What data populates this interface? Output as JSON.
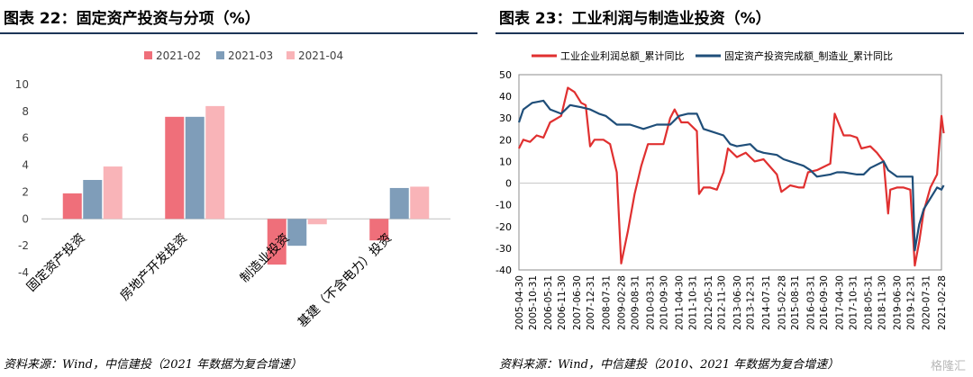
{
  "left": {
    "title": "图表 22：固定资产投资与分项（%）",
    "source": "资料来源：Wind，中信建投（2021 年数据为复合增速）",
    "legend": [
      "2021-02",
      "2021-03",
      "2021-04"
    ]
  },
  "right": {
    "title": "图表 23：工业利润与制造业投资（%）",
    "source": "资料来源：Wind，中信建投（2010、2021 年数据为复合增速）",
    "legend": [
      "工业企业利润总额_累计同比",
      "固定资产投资完成额_制造业_累计同比"
    ]
  },
  "watermark": "格隆汇",
  "chart_data": [
    {
      "type": "bar",
      "categories": [
        "固定资产投资",
        "房地产开发投资",
        "制造业投资",
        "基建（不含电力）投资"
      ],
      "series": [
        {
          "name": "2021-02",
          "values": [
            1.9,
            7.6,
            -3.4,
            -1.6
          ],
          "color": "#ef6f7a"
        },
        {
          "name": "2021-03",
          "values": [
            2.9,
            7.6,
            -2.0,
            2.3
          ],
          "color": "#7f9db9"
        },
        {
          "name": "2021-04",
          "values": [
            3.9,
            8.4,
            -0.4,
            2.4
          ],
          "color": "#f9b4b8"
        }
      ],
      "ylim": [
        -4,
        10
      ],
      "yticks": [
        -4,
        -2,
        0,
        2,
        4,
        6,
        8,
        10
      ],
      "legend_position": "top"
    },
    {
      "type": "line",
      "x_start": "2005-04",
      "x_end": "2021-02",
      "xticks": [
        "2005-04-30",
        "2005-10-31",
        "2006-05-31",
        "2006-11-30",
        "2007-06-30",
        "2007-12-31",
        "2008-07-31",
        "2009-02-28",
        "2009-08-31",
        "2010-03-31",
        "2010-09-30",
        "2011-04-30",
        "2011-10-31",
        "2012-05-31",
        "2012-11-30",
        "2013-06-30",
        "2013-12-31",
        "2014-07-31",
        "2015-02-28",
        "2015-08-31",
        "2016-03-31",
        "2016-09-30",
        "2017-04-30",
        "2017-10-31",
        "2018-05-31",
        "2018-11-30",
        "2019-06-30",
        "2019-12-31",
        "2020-07-31",
        "2021-02-28"
      ],
      "ylim": [
        -40,
        50
      ],
      "yticks": [
        -40,
        -30,
        -20,
        -10,
        0,
        10,
        20,
        30,
        40,
        50
      ],
      "legend_position": "top",
      "series": [
        {
          "name": "工业企业利润总额_累计同比",
          "color": "#e03030",
          "points": [
            [
              "2005-04",
              16
            ],
            [
              "2005-06",
              20
            ],
            [
              "2005-09",
              19
            ],
            [
              "2005-12",
              22
            ],
            [
              "2006-03",
              21
            ],
            [
              "2006-06",
              28
            ],
            [
              "2006-11",
              31
            ],
            [
              "2007-02",
              44
            ],
            [
              "2007-05",
              42
            ],
            [
              "2007-08",
              37
            ],
            [
              "2007-10",
              36
            ],
            [
              "2007-12",
              17
            ],
            [
              "2008-02",
              20
            ],
            [
              "2008-06",
              20
            ],
            [
              "2008-09",
              18
            ],
            [
              "2008-12",
              5
            ],
            [
              "2009-02",
              -37
            ],
            [
              "2009-05",
              -22
            ],
            [
              "2009-08",
              -5
            ],
            [
              "2009-11",
              8
            ],
            [
              "2010-02",
              18
            ],
            [
              "2010-06",
              18
            ],
            [
              "2010-09",
              18
            ],
            [
              "2010-12",
              30
            ],
            [
              "2011-02",
              34
            ],
            [
              "2011-05",
              28
            ],
            [
              "2011-08",
              28
            ],
            [
              "2011-12",
              24
            ],
            [
              "2012-01",
              -5
            ],
            [
              "2012-03",
              -2
            ],
            [
              "2012-06",
              -2
            ],
            [
              "2012-09",
              -3
            ],
            [
              "2012-12",
              5
            ],
            [
              "2013-02",
              16
            ],
            [
              "2013-06",
              12
            ],
            [
              "2013-10",
              14
            ],
            [
              "2013-12",
              12
            ],
            [
              "2014-02",
              10
            ],
            [
              "2014-06",
              11
            ],
            [
              "2014-12",
              4
            ],
            [
              "2015-02",
              -4
            ],
            [
              "2015-06",
              -1
            ],
            [
              "2015-10",
              -2
            ],
            [
              "2015-12",
              -2
            ],
            [
              "2016-02",
              5
            ],
            [
              "2016-06",
              6
            ],
            [
              "2016-12",
              9
            ],
            [
              "2017-02",
              32
            ],
            [
              "2017-06",
              22
            ],
            [
              "2017-09",
              22
            ],
            [
              "2017-12",
              21
            ],
            [
              "2018-02",
              16
            ],
            [
              "2018-06",
              17
            ],
            [
              "2018-09",
              14
            ],
            [
              "2018-12",
              10
            ],
            [
              "2019-02",
              -14
            ],
            [
              "2019-03",
              -3
            ],
            [
              "2019-06",
              -2
            ],
            [
              "2019-09",
              -2
            ],
            [
              "2019-12",
              -3
            ],
            [
              "2020-02",
              -38
            ],
            [
              "2020-04",
              -27
            ],
            [
              "2020-06",
              -13
            ],
            [
              "2020-09",
              -2
            ],
            [
              "2020-12",
              4
            ],
            [
              "2021-02",
              31
            ],
            [
              "2021-03",
              23
            ]
          ]
        },
        {
          "name": "固定资产投资完成额_制造业_累计同比",
          "color": "#1f4e79",
          "points": [
            [
              "2005-04",
              28
            ],
            [
              "2005-06",
              34
            ],
            [
              "2005-10",
              37
            ],
            [
              "2006-03",
              38
            ],
            [
              "2006-06",
              34
            ],
            [
              "2006-11",
              32
            ],
            [
              "2007-03",
              36
            ],
            [
              "2007-08",
              35
            ],
            [
              "2007-12",
              34
            ],
            [
              "2008-04",
              32
            ],
            [
              "2008-07",
              31
            ],
            [
              "2008-12",
              27
            ],
            [
              "2009-06",
              27
            ],
            [
              "2009-12",
              25
            ],
            [
              "2010-06",
              27
            ],
            [
              "2010-12",
              27
            ],
            [
              "2011-04",
              31
            ],
            [
              "2011-08",
              32
            ],
            [
              "2011-12",
              32
            ],
            [
              "2012-03",
              25
            ],
            [
              "2012-06",
              24
            ],
            [
              "2012-12",
              22
            ],
            [
              "2013-03",
              18
            ],
            [
              "2013-06",
              17
            ],
            [
              "2013-12",
              18
            ],
            [
              "2014-03",
              15
            ],
            [
              "2014-06",
              14
            ],
            [
              "2014-12",
              13
            ],
            [
              "2015-03",
              11
            ],
            [
              "2015-06",
              10
            ],
            [
              "2015-12",
              8
            ],
            [
              "2016-03",
              6
            ],
            [
              "2016-06",
              3
            ],
            [
              "2016-12",
              4
            ],
            [
              "2017-03",
              5
            ],
            [
              "2017-06",
              5
            ],
            [
              "2017-12",
              4
            ],
            [
              "2018-03",
              4
            ],
            [
              "2018-06",
              7
            ],
            [
              "2018-12",
              10
            ],
            [
              "2019-02",
              6
            ],
            [
              "2019-06",
              3
            ],
            [
              "2019-12",
              3
            ],
            [
              "2020-01",
              3
            ],
            [
              "2020-02",
              -31
            ],
            [
              "2020-04",
              -19
            ],
            [
              "2020-06",
              -12
            ],
            [
              "2020-09",
              -7
            ],
            [
              "2020-12",
              -2
            ],
            [
              "2021-02",
              -3
            ],
            [
              "2021-03",
              -1
            ]
          ]
        }
      ]
    }
  ]
}
